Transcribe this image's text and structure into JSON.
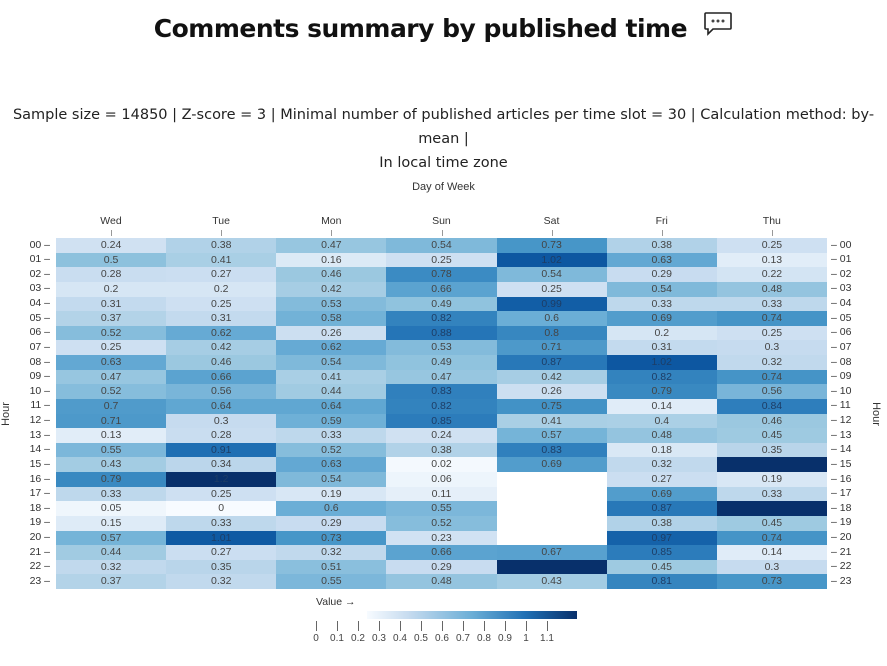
{
  "title": "Comments summary by published time",
  "title_icon": "speech-bubble-icon",
  "subtitle_line1": "Sample size = 14850 | Z-score = 3 | Minimal number of published articles per time slot = 30 | Calculation method: by-mean |",
  "subtitle_line2": "In local time zone",
  "chart_data": {
    "type": "heatmap",
    "title": "Comments summary by published time",
    "xlabel": "Day of Week",
    "ylabel": "Hour",
    "x_position": "top",
    "colorscale": "Blues",
    "legend_title": "Value →",
    "legend_ticks": [
      "0",
      "0.1",
      "0.2",
      "0.3",
      "0.4",
      "0.5",
      "0.6",
      "0.7",
      "0.8",
      "0.9",
      "1",
      "1.1"
    ],
    "value_range": [
      0,
      1.2
    ],
    "columns": [
      "Wed",
      "Tue",
      "Mon",
      "Sun",
      "Sat",
      "Fri",
      "Thu"
    ],
    "rows": [
      "00",
      "01",
      "02",
      "03",
      "04",
      "05",
      "06",
      "07",
      "08",
      "09",
      "10",
      "11",
      "12",
      "13",
      "14",
      "15",
      "16",
      "17",
      "18",
      "19",
      "20",
      "21",
      "22",
      "23"
    ],
    "values": [
      [
        0.24,
        0.38,
        0.47,
        0.54,
        0.73,
        0.38,
        0.25
      ],
      [
        0.5,
        0.41,
        0.16,
        0.25,
        1.02,
        0.63,
        0.13
      ],
      [
        0.28,
        0.27,
        0.46,
        0.78,
        0.54,
        0.29,
        0.22
      ],
      [
        0.2,
        0.2,
        0.42,
        0.66,
        0.25,
        0.54,
        0.48
      ],
      [
        0.31,
        0.25,
        0.53,
        0.49,
        0.99,
        0.33,
        0.33
      ],
      [
        0.37,
        0.31,
        0.58,
        0.82,
        0.6,
        0.69,
        0.74
      ],
      [
        0.52,
        0.62,
        0.26,
        0.88,
        0.8,
        0.2,
        0.25
      ],
      [
        0.25,
        0.42,
        0.62,
        0.53,
        0.71,
        0.31,
        0.3
      ],
      [
        0.63,
        0.46,
        0.54,
        0.49,
        0.87,
        1.02,
        0.32
      ],
      [
        0.47,
        0.66,
        0.41,
        0.47,
        0.42,
        0.82,
        0.74
      ],
      [
        0.52,
        0.56,
        0.44,
        0.83,
        0.26,
        0.79,
        0.56
      ],
      [
        0.7,
        0.64,
        0.64,
        0.82,
        0.75,
        0.14,
        0.84
      ],
      [
        0.71,
        0.3,
        0.59,
        0.85,
        0.41,
        0.4,
        0.46
      ],
      [
        0.13,
        0.28,
        0.33,
        0.24,
        0.57,
        0.48,
        0.45
      ],
      [
        0.55,
        0.91,
        0.52,
        0.38,
        0.83,
        0.18,
        0.35
      ],
      [
        0.43,
        0.34,
        0.63,
        0.02,
        0.69,
        0.32,
        1.2
      ],
      [
        0.79,
        1.2,
        0.54,
        0.06,
        null,
        0.27,
        0.19
      ],
      [
        0.33,
        0.25,
        0.19,
        0.11,
        null,
        0.69,
        0.33
      ],
      [
        0.05,
        0,
        0.6,
        0.55,
        null,
        0.87,
        1.2
      ],
      [
        0.15,
        0.33,
        0.29,
        0.52,
        null,
        0.38,
        0.45
      ],
      [
        0.57,
        1.01,
        0.73,
        0.23,
        null,
        0.97,
        0.74
      ],
      [
        0.44,
        0.27,
        0.32,
        0.66,
        0.67,
        0.85,
        0.14
      ],
      [
        0.32,
        0.35,
        0.51,
        0.29,
        1.2,
        0.45,
        0.3
      ],
      [
        0.37,
        0.32,
        0.55,
        0.48,
        0.43,
        0.81,
        0.73
      ]
    ],
    "labels": [
      [
        "0.24",
        "0.38",
        "0.47",
        "0.54",
        "0.73",
        "0.38",
        "0.25"
      ],
      [
        "0.5",
        "0.41",
        "0.16",
        "0.25",
        "1.02",
        "0.63",
        "0.13"
      ],
      [
        "0.28",
        "0.27",
        "0.46",
        "0.78",
        "0.54",
        "0.29",
        "0.22"
      ],
      [
        "0.2",
        "0.2",
        "0.42",
        "0.66",
        "0.25",
        "0.54",
        "0.48"
      ],
      [
        "0.31",
        "0.25",
        "0.53",
        "0.49",
        "0.99",
        "0.33",
        "0.33"
      ],
      [
        "0.37",
        "0.31",
        "0.58",
        "0.82",
        "0.6",
        "0.69",
        "0.74"
      ],
      [
        "0.52",
        "0.62",
        "0.26",
        "0.88",
        "0.8",
        "0.2",
        "0.25"
      ],
      [
        "0.25",
        "0.42",
        "0.62",
        "0.53",
        "0.71",
        "0.31",
        "0.3"
      ],
      [
        "0.63",
        "0.46",
        "0.54",
        "0.49",
        "0.87",
        "1.02",
        "0.32"
      ],
      [
        "0.47",
        "0.66",
        "0.41",
        "0.47",
        "0.42",
        "0.82",
        "0.74"
      ],
      [
        "0.52",
        "0.56",
        "0.44",
        "0.83",
        "0.26",
        "0.79",
        "0.56"
      ],
      [
        "0.7",
        "0.64",
        "0.64",
        "0.82",
        "0.75",
        "0.14",
        "0.84"
      ],
      [
        "0.71",
        "0.3",
        "0.59",
        "0.85",
        "0.41",
        "0.4",
        "0.46"
      ],
      [
        "0.13",
        "0.28",
        "0.33",
        "0.24",
        "0.57",
        "0.48",
        "0.45"
      ],
      [
        "0.55",
        "0.91",
        "0.52",
        "0.38",
        "0.83",
        "0.18",
        "0.35"
      ],
      [
        "0.43",
        "0.34",
        "0.63",
        "0.02",
        "0.69",
        "0.32",
        ""
      ],
      [
        "0.79",
        "1.2",
        "0.54",
        "0.06",
        "",
        "0.27",
        "0.19"
      ],
      [
        "0.33",
        "0.25",
        "0.19",
        "0.11",
        "",
        "0.69",
        "0.33"
      ],
      [
        "0.05",
        "0",
        "0.6",
        "0.55",
        "",
        "0.87",
        ""
      ],
      [
        "0.15",
        "0.33",
        "0.29",
        "0.52",
        "",
        "0.38",
        "0.45"
      ],
      [
        "0.57",
        "1.01",
        "0.73",
        "0.23",
        "",
        "0.97",
        "0.74"
      ],
      [
        "0.44",
        "0.27",
        "0.32",
        "0.66",
        "0.67",
        "0.85",
        "0.14"
      ],
      [
        "0.32",
        "0.35",
        "0.51",
        "0.29",
        "",
        "0.45",
        "0.3"
      ],
      [
        "0.37",
        "0.32",
        "0.55",
        "0.48",
        "0.43",
        "0.81",
        "0.73"
      ]
    ]
  }
}
